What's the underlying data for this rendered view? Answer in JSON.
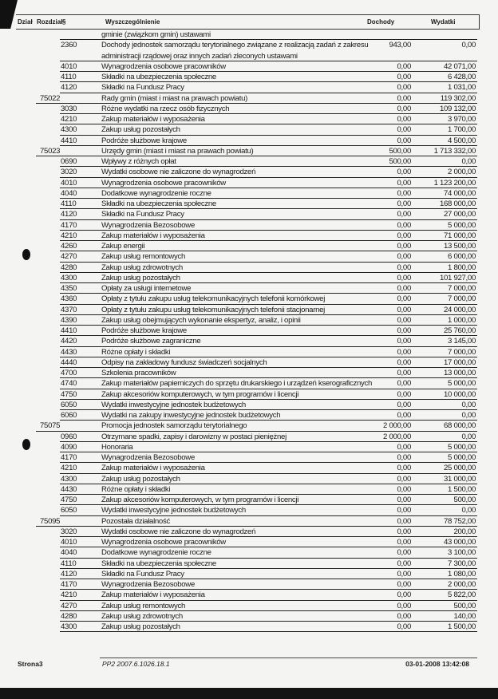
{
  "header": {
    "dzial": "Dział",
    "rozdzial": "Rozdział",
    "paragraf": "§",
    "opis": "Wyszczególnienie",
    "dochody": "Dochody",
    "wydatki": "Wydatki"
  },
  "rows": [
    {
      "rz": "",
      "par": "",
      "desc": "gminie (związkom gmin) ustawami",
      "d": "",
      "w": ""
    },
    {
      "rz": "",
      "par": "2360",
      "desc": "Dochody jednostek samorządu terytorialnego związane z realizacją zadań z zakresu administracji rządowej oraz innych zadań zleconych ustawami",
      "d": "943,00",
      "w": "0,00"
    },
    {
      "rz": "",
      "par": "4010",
      "desc": "Wynagrodzenia osobowe pracowników",
      "d": "0,00",
      "w": "42 071,00"
    },
    {
      "rz": "",
      "par": "4110",
      "desc": "Składki na ubezpieczenia społeczne",
      "d": "0,00",
      "w": "6 428,00"
    },
    {
      "rz": "",
      "par": "4120",
      "desc": "Składki na Fundusz Pracy",
      "d": "0,00",
      "w": "1 031,00"
    },
    {
      "rz": "75022",
      "par": "",
      "desc": "Rady gmin (miast i miast na prawach powiatu)",
      "d": "0,00",
      "w": "119 302,00"
    },
    {
      "rz": "",
      "par": "3030",
      "desc": "Różne wydatki na rzecz osób fizycznych",
      "d": "0,00",
      "w": "109 132,00"
    },
    {
      "rz": "",
      "par": "4210",
      "desc": "Zakup materiałów i wyposażenia",
      "d": "0,00",
      "w": "3 970,00"
    },
    {
      "rz": "",
      "par": "4300",
      "desc": "Zakup usług pozostałych",
      "d": "0,00",
      "w": "1 700,00"
    },
    {
      "rz": "",
      "par": "4410",
      "desc": "Podróże służbowe krajowe",
      "d": "0,00",
      "w": "4 500,00"
    },
    {
      "rz": "75023",
      "par": "",
      "desc": "Urzędy gmin (miast i miast na prawach powiatu)",
      "d": "500,00",
      "w": "1 713 332,00"
    },
    {
      "rz": "",
      "par": "0690",
      "desc": "Wpływy z różnych opłat",
      "d": "500,00",
      "w": "0,00"
    },
    {
      "rz": "",
      "par": "3020",
      "desc": "Wydatki osobowe nie zaliczone do wynagrodzeń",
      "d": "0,00",
      "w": "2 000,00"
    },
    {
      "rz": "",
      "par": "4010",
      "desc": "Wynagrodzenia osobowe pracowników",
      "d": "0,00",
      "w": "1 123 200,00"
    },
    {
      "rz": "",
      "par": "4040",
      "desc": "Dodatkowe wynagrodzenie roczne",
      "d": "0,00",
      "w": "74 000,00"
    },
    {
      "rz": "",
      "par": "4110",
      "desc": "Składki na ubezpieczenia społeczne",
      "d": "0,00",
      "w": "168 000,00"
    },
    {
      "rz": "",
      "par": "4120",
      "desc": "Składki na Fundusz Pracy",
      "d": "0,00",
      "w": "27 000,00"
    },
    {
      "rz": "",
      "par": "4170",
      "desc": "Wynagrodzenia Bezosobowe",
      "d": "0,00",
      "w": "5 000,00"
    },
    {
      "rz": "",
      "par": "4210",
      "desc": "Zakup materiałów i wyposażenia",
      "d": "0,00",
      "w": "71 000,00"
    },
    {
      "rz": "",
      "par": "4260",
      "desc": "Zakup energii",
      "d": "0,00",
      "w": "13 500,00"
    },
    {
      "rz": "",
      "par": "4270",
      "desc": "Zakup usług remontowych",
      "d": "0,00",
      "w": "6 000,00"
    },
    {
      "rz": "",
      "par": "4280",
      "desc": "Zakup usług zdrowotnych",
      "d": "0,00",
      "w": "1 800,00"
    },
    {
      "rz": "",
      "par": "4300",
      "desc": "Zakup usług pozostałych",
      "d": "0,00",
      "w": "101 927,00"
    },
    {
      "rz": "",
      "par": "4350",
      "desc": "Opłaty za usługi internetowe",
      "d": "0,00",
      "w": "7 000,00"
    },
    {
      "rz": "",
      "par": "4360",
      "desc": "Opłaty z tytułu zakupu usług telekomunikacyjnych telefonii komórkowej",
      "d": "0,00",
      "w": "7 000,00"
    },
    {
      "rz": "",
      "par": "4370",
      "desc": "Opłaty z tytułu zakupu usług telekomunikacyjnych telefonii stacjonarnej",
      "d": "0,00",
      "w": "24 000,00"
    },
    {
      "rz": "",
      "par": "4390",
      "desc": "Zakup usług obejmujących wykonanie ekspertyz, analiz, i opinii",
      "d": "0,00",
      "w": "1 000,00"
    },
    {
      "rz": "",
      "par": "4410",
      "desc": "Podróże służbowe krajowe",
      "d": "0,00",
      "w": "25 760,00"
    },
    {
      "rz": "",
      "par": "4420",
      "desc": "Podróże służbowe zagraniczne",
      "d": "0,00",
      "w": "3 145,00"
    },
    {
      "rz": "",
      "par": "4430",
      "desc": "Różne opłaty i składki",
      "d": "0,00",
      "w": "7 000,00"
    },
    {
      "rz": "",
      "par": "4440",
      "desc": "Odpisy na zakładowy fundusz świadczeń socjalnych",
      "d": "0,00",
      "w": "17 000,00"
    },
    {
      "rz": "",
      "par": "4700",
      "desc": "Szkolenia pracowników",
      "d": "0,00",
      "w": "13 000,00"
    },
    {
      "rz": "",
      "par": "4740",
      "desc": "Zakup materiałów papierniczych do sprzętu drukarskiego i urządzeń kserograficznych",
      "d": "0,00",
      "w": "5 000,00"
    },
    {
      "rz": "",
      "par": "4750",
      "desc": "Zakup akcesoriów komputerowych, w tym programów i licencji",
      "d": "0,00",
      "w": "10 000,00"
    },
    {
      "rz": "",
      "par": "6050",
      "desc": "Wydatki inwestycyjne jednostek budżetowych",
      "d": "0,00",
      "w": "0,00"
    },
    {
      "rz": "",
      "par": "6060",
      "desc": "Wydatki na zakupy inwestycyjne jednostek budżetowych",
      "d": "0,00",
      "w": "0,00"
    },
    {
      "rz": "75075",
      "par": "",
      "desc": "Promocja jednostek samorządu terytorialnego",
      "d": "2 000,00",
      "w": "68 000,00"
    },
    {
      "rz": "",
      "par": "0960",
      "desc": "Otrzymane spadki, zapisy i darowizny w postaci pieniężnej",
      "d": "2 000,00",
      "w": "0,00"
    },
    {
      "rz": "",
      "par": "4090",
      "desc": "Honoraria",
      "d": "0,00",
      "w": "5 000,00"
    },
    {
      "rz": "",
      "par": "4170",
      "desc": "Wynagrodzenia Bezosobowe",
      "d": "0,00",
      "w": "5 000,00"
    },
    {
      "rz": "",
      "par": "4210",
      "desc": "Zakup materiałów i wyposażenia",
      "d": "0,00",
      "w": "25 000,00"
    },
    {
      "rz": "",
      "par": "4300",
      "desc": "Zakup usług pozostałych",
      "d": "0,00",
      "w": "31 000,00"
    },
    {
      "rz": "",
      "par": "4430",
      "desc": "Różne opłaty i składki",
      "d": "0,00",
      "w": "1 500,00"
    },
    {
      "rz": "",
      "par": "4750",
      "desc": "Zakup akcesoriów komputerowych, w tym programów i licencji",
      "d": "0,00",
      "w": "500,00"
    },
    {
      "rz": "",
      "par": "6050",
      "desc": "Wydatki inwestycyjne jednostek budżetowych",
      "d": "0,00",
      "w": "0,00"
    },
    {
      "rz": "75095",
      "par": "",
      "desc": "Pozostała działalność",
      "d": "0,00",
      "w": "78 752,00"
    },
    {
      "rz": "",
      "par": "3020",
      "desc": "Wydatki osobowe nie zaliczone do wynagrodzeń",
      "d": "0,00",
      "w": "200,00"
    },
    {
      "rz": "",
      "par": "4010",
      "desc": "Wynagrodzenia osobowe pracowników",
      "d": "0,00",
      "w": "43 000,00"
    },
    {
      "rz": "",
      "par": "4040",
      "desc": "Dodatkowe wynagrodzenie roczne",
      "d": "0,00",
      "w": "3 100,00"
    },
    {
      "rz": "",
      "par": "4110",
      "desc": "Składki na ubezpieczenia społeczne",
      "d": "0,00",
      "w": "7 300,00"
    },
    {
      "rz": "",
      "par": "4120",
      "desc": "Składki na Fundusz Pracy",
      "d": "0,00",
      "w": "1 080,00"
    },
    {
      "rz": "",
      "par": "4170",
      "desc": "Wynagrodzenia Bezosobowe",
      "d": "0,00",
      "w": "2 000,00"
    },
    {
      "rz": "",
      "par": "4210",
      "desc": "Zakup materiałów i wyposażenia",
      "d": "0,00",
      "w": "5 822,00"
    },
    {
      "rz": "",
      "par": "4270",
      "desc": "Zakup usług remontowych",
      "d": "0,00",
      "w": "500,00"
    },
    {
      "rz": "",
      "par": "4280",
      "desc": "Zakup usług zdrowotnych",
      "d": "0,00",
      "w": "140,00"
    },
    {
      "rz": "",
      "par": "4300",
      "desc": "Zakup usług pozostałych",
      "d": "0,00",
      "w": "1 500,00"
    }
  ],
  "footer": {
    "page": "Strona3",
    "code": "PP2 2007.6.1026.18.1",
    "datetime": "03-01-2008 13:42:08"
  }
}
